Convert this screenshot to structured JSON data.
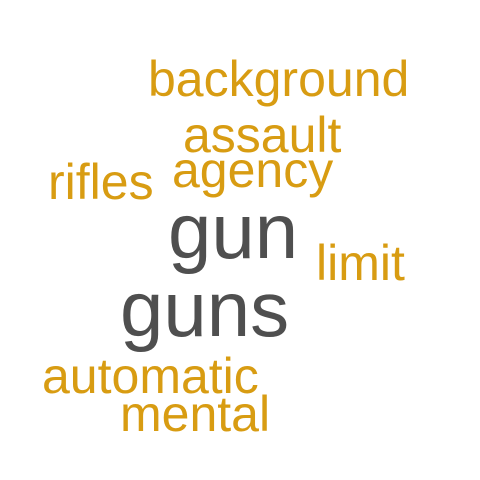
{
  "colors": {
    "primary": "#4f4f4f",
    "secondary": "#d89c12",
    "background": "#ffffff"
  },
  "words": [
    {
      "key": "background",
      "text": "background",
      "emphasis": "secondary"
    },
    {
      "key": "assault",
      "text": "assault",
      "emphasis": "secondary"
    },
    {
      "key": "agency",
      "text": "agency",
      "emphasis": "secondary"
    },
    {
      "key": "rifles",
      "text": "rifles",
      "emphasis": "secondary"
    },
    {
      "key": "gun",
      "text": "gun",
      "emphasis": "primary"
    },
    {
      "key": "limit",
      "text": "limit",
      "emphasis": "secondary"
    },
    {
      "key": "guns",
      "text": "guns",
      "emphasis": "primary"
    },
    {
      "key": "automatic",
      "text": "automatic",
      "emphasis": "secondary"
    },
    {
      "key": "mental",
      "text": "mental",
      "emphasis": "secondary"
    }
  ]
}
